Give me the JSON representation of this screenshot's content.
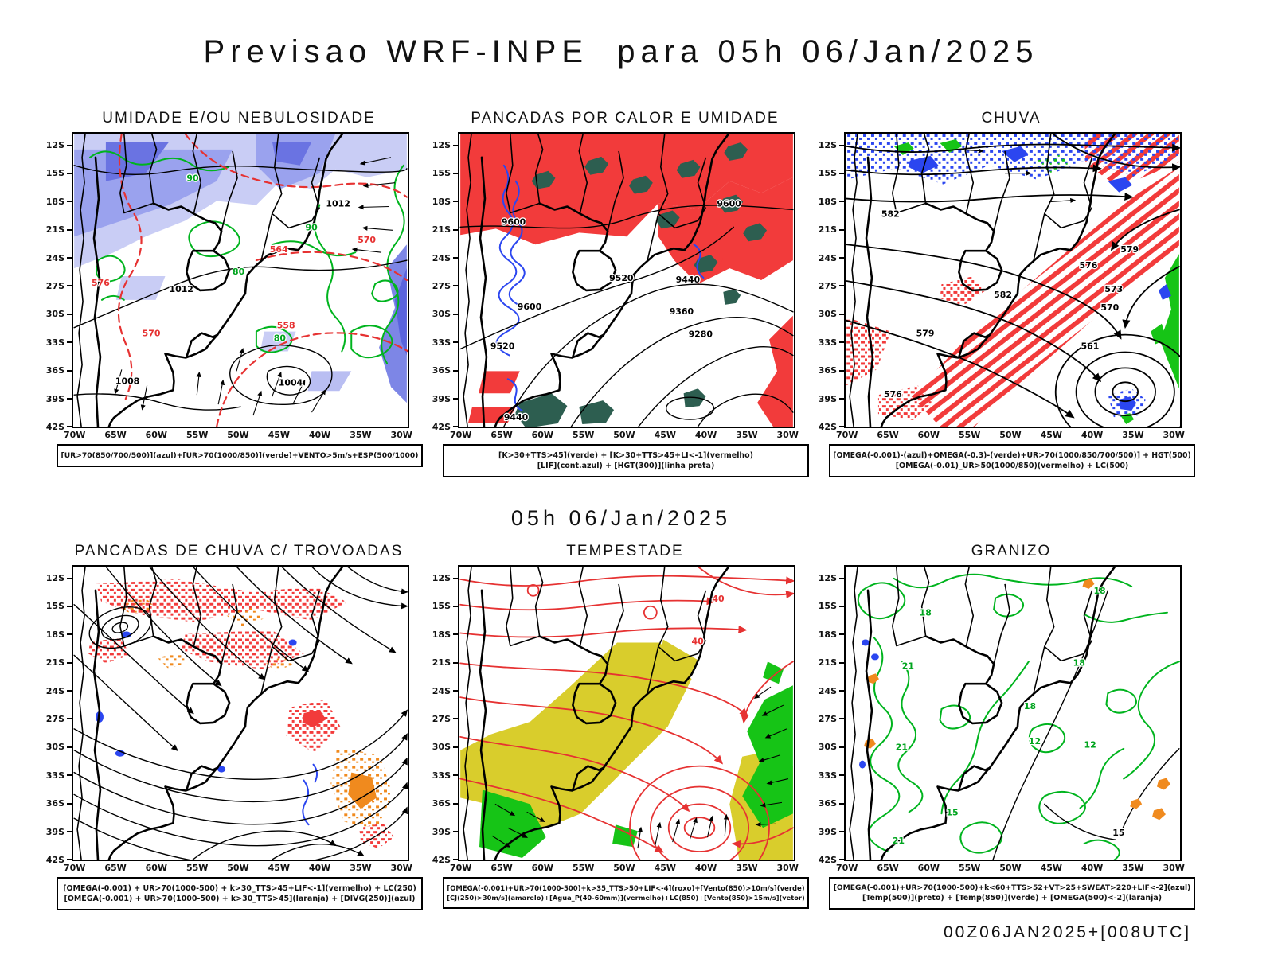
{
  "header": {
    "title": "Previsao WRF-INPE  para 05h 06/Jan/2025"
  },
  "subtitle": "05h 06/Jan/2025",
  "footer": "00Z06JAN2025+[008UTC]",
  "axes": {
    "lats": [
      "12S",
      "15S",
      "18S",
      "21S",
      "24S",
      "27S",
      "30S",
      "33S",
      "36S",
      "39S",
      "42S"
    ],
    "lons": [
      "70W",
      "65W",
      "60W",
      "55W",
      "50W",
      "45W",
      "40W",
      "35W",
      "30W"
    ]
  },
  "colors": {
    "humidity_light": "#c9cdf5",
    "humidity_mid": "#8e96ea",
    "humidity_dark": "#5a64dd",
    "contour_green": "#00b41e",
    "warn_red": "#f23b3b",
    "teal_green": "#2d5e50",
    "lif_blue": "#2b46f0",
    "jet_yellow": "#d9cd2c",
    "wind_green": "#16c416",
    "orange": "#f08a1e"
  },
  "panels": [
    {
      "id": "umidade",
      "title": "UMIDADE E/OU NEBULOSIDADE",
      "caption": [
        "[UR>70(850/700/500)](azul)+[UR>70(1000/850)](verde)+VENTO>5m/s+ESP(500/1000)"
      ],
      "labels": {
        "black": [
          "1012",
          "1012",
          "1008",
          "1004"
        ],
        "green": [
          "90",
          "80",
          "90",
          "80"
        ],
        "red": [
          "576",
          "570",
          "564",
          "558",
          "570"
        ]
      }
    },
    {
      "id": "pancadas-calor",
      "title": "PANCADAS POR CALOR E UMIDADE",
      "caption": [
        "[K>30+TTS>45](verde) + [K>30+TTS>45+LI<-1](vermelho)",
        "[LIF](cont.azul) + [HGT(300)](linha preta)"
      ],
      "labels": {
        "black": [
          "9600",
          "9600",
          "9600",
          "9520",
          "9520",
          "9440",
          "9440",
          "9360",
          "9280"
        ]
      }
    },
    {
      "id": "chuva",
      "title": "CHUVA",
      "caption": [
        "[OMEGA(-0.001)-(azul)+OMEGA(-0.3)-(verde)+UR>70(1000/850/700/500)] + HGT(500)",
        "[OMEGA(-0.01)_UR>50(1000/850)(vermelho) + LC(500)"
      ],
      "labels": {
        "black": [
          "582",
          "582",
          "579",
          "579",
          "576",
          "576",
          "573",
          "570",
          "561"
        ]
      }
    },
    {
      "id": "trovoadas",
      "title": "PANCADAS DE CHUVA C/ TROVOADAS",
      "caption": [
        "[OMEGA(-0.001) + UR>70(1000-500) + k>30_TTS>45+LIF<-1](vermelho) + LC(250)",
        "[OMEGA(-0.001) + UR>70(1000-500) + k>30_TTS>45](laranja) + [DIVG(250)](azul)"
      ],
      "labels": {}
    },
    {
      "id": "tempestade",
      "title": "TEMPESTADE",
      "caption": [
        "[OMEGA(-0.001)+UR>70(1000-500)+k>35_TTS>50+LIF<-4](roxo)+[Vento(850)>10m/s](verde)",
        "[CJ(250)>30m/s](amarelo)+[Agua_P(40-60mm)](vermelho)+LC(850)+[Vento(850)>15m/s](vetor)"
      ],
      "labels": {
        "red": [
          "40",
          "40"
        ]
      }
    },
    {
      "id": "granizo",
      "title": "GRANIZO",
      "caption": [
        "[OMEGA(-0.001)+UR>70(1000-500)+k<60+TTS>52+VT>25+SWEAT>220+LIF<-2](azul)",
        "[Temp(500)](preto) + [Temp(850)](verde) + [OMEGA(500)<-2](laranja)"
      ],
      "labels": {
        "green": [
          "18",
          "18",
          "18",
          "18",
          "21",
          "21",
          "21",
          "12",
          "12",
          "15"
        ],
        "black": [
          "15"
        ]
      }
    }
  ]
}
